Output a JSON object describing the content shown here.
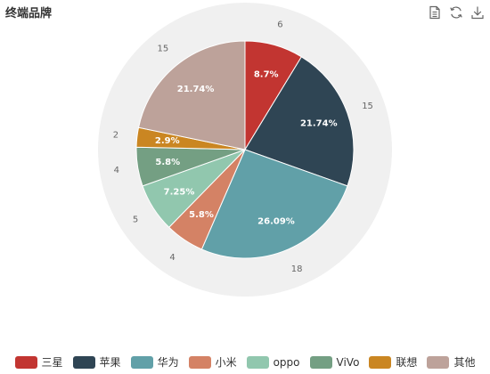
{
  "chart_data": {
    "type": "pie",
    "title": "终端品牌",
    "categories": [
      "三星",
      "苹果",
      "华为",
      "小米",
      "oppo",
      "ViVo",
      "联想",
      "其他"
    ],
    "values": [
      6,
      15,
      18,
      4,
      5,
      4,
      2,
      15
    ],
    "percent_labels": [
      "8.7%",
      "21.74%",
      "26.09%",
      "5.8%",
      "7.25%",
      "5.8%",
      "2.9%",
      "21.74%"
    ],
    "colors": [
      "#c23531",
      "#2f4554",
      "#61a0a8",
      "#d48265",
      "#91c7ae",
      "#749f83",
      "#ca8622",
      "#bda29a"
    ],
    "legend_position": "bottom"
  },
  "toolbox": {
    "icons": [
      "data-view-icon",
      "restore-icon",
      "save-as-image-icon"
    ]
  }
}
